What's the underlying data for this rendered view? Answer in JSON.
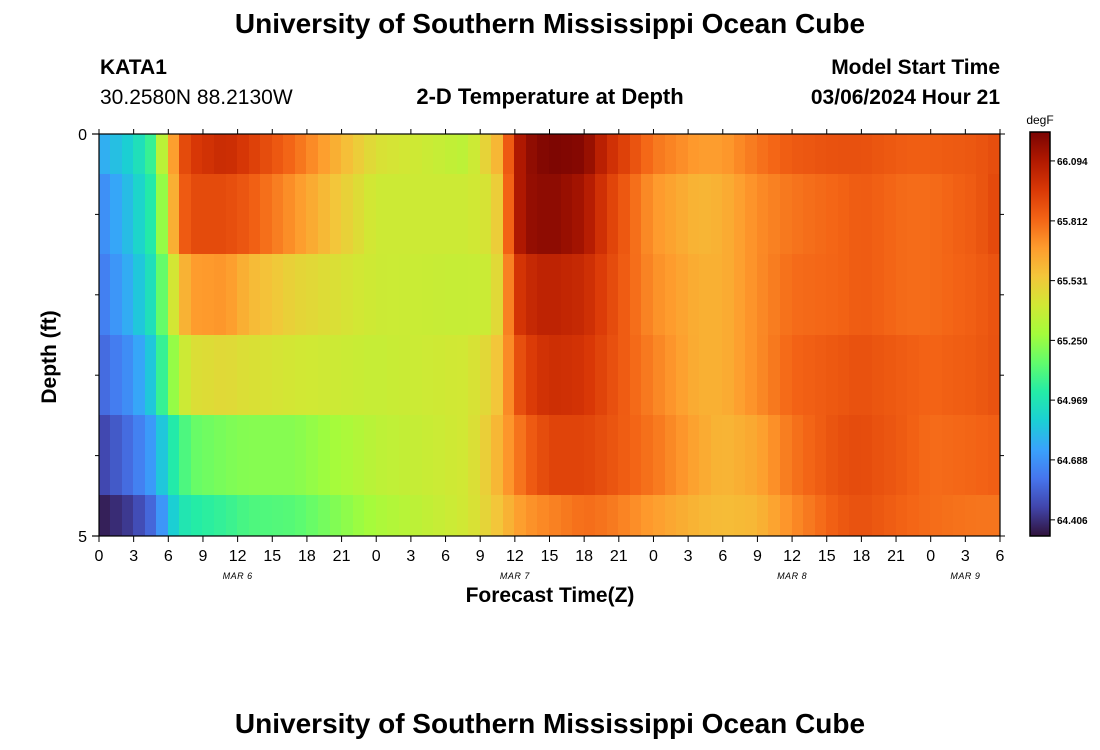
{
  "page": {
    "title_top": "University of Southern Mississippi Ocean Cube",
    "title_bottom": "University of Southern Mississippi Ocean Cube",
    "station": "KATA1",
    "coords": "30.2580N  88.2130W",
    "plot_title": "2-D Temperature at Depth",
    "model_start_label": "Model Start Time",
    "model_start_value": "03/06/2024 Hour 21",
    "colors": {
      "background": "#ffffff",
      "axis": "#000000"
    }
  },
  "chart_data": {
    "type": "heatmap",
    "title": "2-D Temperature at Depth",
    "xlabel": "Forecast Time(Z)",
    "ylabel": "Depth (ft)",
    "x_tick_labels": [
      "0",
      "3",
      "6",
      "9",
      "12",
      "15",
      "18",
      "21",
      "0",
      "3",
      "6",
      "9",
      "12",
      "15",
      "18",
      "21",
      "0",
      "3",
      "6",
      "9",
      "12",
      "15",
      "18",
      "21",
      "0",
      "3",
      "6"
    ],
    "x_hours": [
      0,
      3,
      6,
      9,
      12,
      15,
      18,
      21,
      24,
      27,
      30,
      33,
      36,
      39,
      42,
      45,
      48,
      51,
      54,
      57,
      60,
      63,
      66,
      69,
      72,
      75,
      78
    ],
    "xlim": [
      0,
      78
    ],
    "date_labels": [
      {
        "label": "MAR 6",
        "hour": 12
      },
      {
        "label": "MAR 7",
        "hour": 36
      },
      {
        "label": "MAR 8",
        "hour": 60
      },
      {
        "label": "MAR 9",
        "hour": 75
      }
    ],
    "y_tick_labels": [
      "0",
      "5"
    ],
    "ylim": [
      0,
      5
    ],
    "y_minor_ticks": [
      1,
      2,
      3,
      4
    ],
    "depth_bands": [
      [
        0,
        0.5
      ],
      [
        0.5,
        1.5
      ],
      [
        1.5,
        2.5
      ],
      [
        2.5,
        3.5
      ],
      [
        3.5,
        4.5
      ],
      [
        4.5,
        5
      ]
    ],
    "colorbar": {
      "unit": "degF",
      "ticks": [
        66.094,
        65.812,
        65.531,
        65.25,
        64.969,
        64.688,
        64.406
      ],
      "range": [
        64.33,
        66.23
      ],
      "colors": [
        "#30123b",
        "#4145ab",
        "#4675ed",
        "#39a2fc",
        "#1bcfd4",
        "#24eca6",
        "#61fc6c",
        "#a4fc3b",
        "#d1e834",
        "#f3c63a",
        "#fe9b2d",
        "#f36315",
        "#d93806",
        "#b11901",
        "#7a0402"
      ]
    },
    "x_keys": [
      0,
      3,
      5,
      5.5,
      6,
      7,
      8,
      11,
      13,
      17,
      24,
      32,
      34,
      35,
      36,
      37,
      38,
      39.5,
      42,
      44,
      48,
      52,
      54,
      57,
      60,
      64,
      66,
      70,
      72,
      76,
      78
    ],
    "values": [
      [
        64.75,
        64.9,
        65.1,
        65.35,
        65.5,
        65.85,
        65.95,
        66.02,
        65.95,
        65.8,
        65.45,
        65.35,
        65.55,
        65.65,
        66.05,
        66.15,
        66.2,
        66.22,
        66.2,
        66.02,
        65.78,
        65.68,
        65.68,
        65.78,
        65.85,
        65.88,
        65.88,
        65.84,
        65.84,
        65.86,
        65.9
      ],
      [
        64.65,
        64.85,
        65.05,
        65.25,
        65.45,
        65.8,
        65.9,
        65.9,
        65.85,
        65.7,
        65.4,
        65.4,
        65.45,
        65.6,
        66.05,
        66.15,
        66.18,
        66.18,
        66.12,
        65.95,
        65.7,
        65.6,
        65.62,
        65.72,
        65.78,
        65.82,
        65.85,
        65.8,
        65.8,
        65.85,
        65.92
      ],
      [
        64.6,
        64.8,
        65.0,
        65.15,
        65.3,
        65.55,
        65.68,
        65.7,
        65.6,
        65.5,
        65.4,
        65.38,
        65.4,
        65.55,
        65.95,
        66.0,
        66.05,
        66.05,
        66.02,
        65.92,
        65.72,
        65.62,
        65.62,
        65.72,
        65.8,
        65.82,
        65.85,
        65.8,
        65.8,
        65.84,
        65.88
      ],
      [
        64.55,
        64.7,
        64.9,
        65.05,
        65.15,
        65.35,
        65.45,
        65.48,
        65.45,
        65.42,
        65.38,
        65.42,
        65.5,
        65.6,
        65.85,
        65.92,
        65.98,
        66.0,
        65.98,
        65.9,
        65.75,
        65.62,
        65.62,
        65.72,
        65.82,
        65.86,
        65.88,
        65.84,
        65.82,
        65.85,
        65.88
      ],
      [
        64.45,
        64.6,
        64.75,
        64.85,
        64.95,
        65.05,
        65.15,
        65.2,
        65.22,
        65.22,
        65.35,
        65.42,
        65.55,
        65.65,
        65.75,
        65.82,
        65.88,
        65.92,
        65.92,
        65.88,
        65.78,
        65.65,
        65.6,
        65.65,
        65.78,
        65.88,
        65.9,
        65.84,
        65.8,
        65.82,
        65.84
      ],
      [
        64.35,
        64.45,
        64.6,
        64.7,
        64.8,
        64.95,
        65.0,
        65.05,
        65.1,
        65.12,
        65.3,
        65.42,
        65.52,
        65.58,
        65.65,
        65.7,
        65.72,
        65.75,
        65.8,
        65.78,
        65.68,
        65.6,
        65.58,
        65.6,
        65.72,
        65.85,
        65.88,
        65.82,
        65.8,
        65.78,
        65.78
      ]
    ]
  }
}
